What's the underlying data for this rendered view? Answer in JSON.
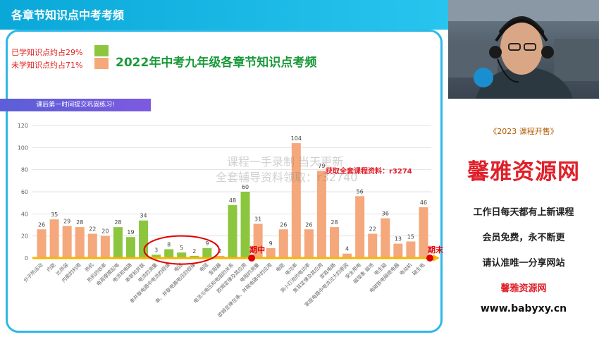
{
  "slide": {
    "title": "各章节知识点中考考频",
    "legend_learned": "已学知识点约占29%",
    "legend_unlearned": "未学知识点约占71%",
    "colors": {
      "learned": "#8cc63f",
      "unlearned": "#f4a87c",
      "accent": "#2eb8e8",
      "marker": "#e00000"
    }
  },
  "watermarks": {
    "line1": "课程一手录制  当天更新",
    "line2": "全套辅导资料领取：r32740",
    "line3": "获取全套课程资料：r3274"
  },
  "chart_data": {
    "type": "bar",
    "title": "2022年中考九年级各章节知识点考频",
    "ylim": [
      0,
      120
    ],
    "yticks": [
      0,
      20,
      40,
      60,
      80,
      100,
      120
    ],
    "grid": true,
    "categories": [
      "分子热运动",
      "内能",
      "比热容",
      "内能的利用",
      "热机",
      "热机的效率",
      "电荷摩擦起电",
      "电流和电路",
      "串联和并联",
      "电流的测量",
      "串并联电路中电流的规律",
      "电压",
      "串、并联电路电压的规律",
      "电阻",
      "变阻器",
      "电流与电压和电阻的关系",
      "欧姆定律及其应用",
      "电阻的测量",
      "欧姆定律在串、并联电路中的应用",
      "电能",
      "电功率",
      "测小灯泡的电功率",
      "焦耳定律及其应用",
      "家庭电路",
      "家庭电路中电流过大的原因",
      "安全用电",
      "磁现象 磁场",
      "电生磁",
      "电磁铁电磁继电器",
      "电动机",
      "磁生电"
    ],
    "values": [
      26,
      35,
      29,
      28,
      22,
      20,
      28,
      19,
      34,
      3,
      8,
      5,
      2,
      9,
      2,
      48,
      60,
      31,
      9,
      26,
      104,
      26,
      79,
      28,
      4,
      56,
      22,
      36,
      13,
      15,
      46
    ],
    "learned": [
      false,
      false,
      false,
      false,
      false,
      false,
      true,
      true,
      true,
      true,
      true,
      true,
      true,
      true,
      false,
      true,
      true,
      false,
      false,
      false,
      false,
      false,
      false,
      false,
      false,
      false,
      false,
      false,
      false,
      false,
      false
    ],
    "markers": [
      {
        "label": "期中",
        "after_index": 16
      },
      {
        "label": "期末",
        "after_index": 30
      }
    ]
  },
  "right_panel": {
    "banner": "课后第一时间提交巩固练习!",
    "sale_title": "《2023 课程开售》",
    "brand": "馨雅资源网",
    "promo1": "工作日每天都有上新课程",
    "promo2": "会员免费，永不断更",
    "promo3": "请认准唯一分享网站",
    "promo_site": "馨雅资源网",
    "url": "www.babyxy.cn"
  }
}
